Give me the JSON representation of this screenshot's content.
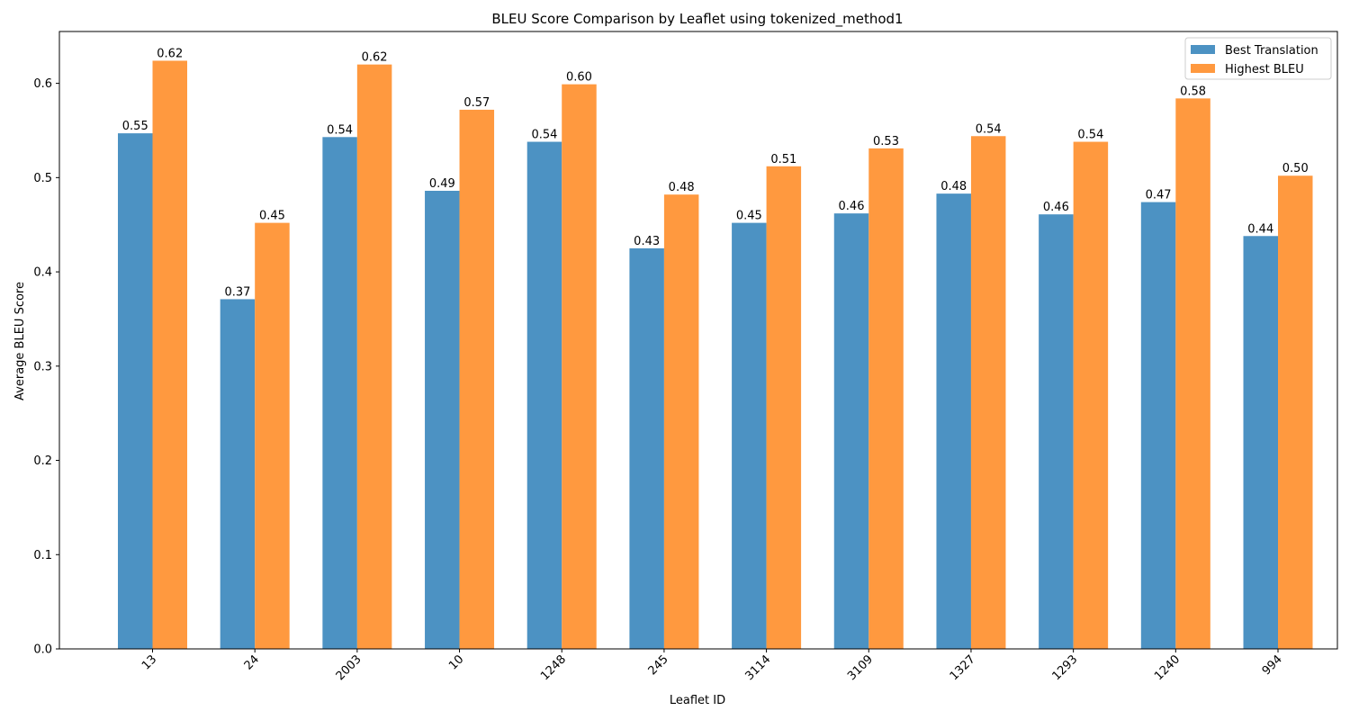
{
  "chart_data": {
    "type": "bar",
    "title": "BLEU Score Comparison by Leaflet using tokenized_method1",
    "xlabel": "Leaflet ID",
    "ylabel": "Average BLEU Score",
    "ylim": [
      0,
      0.655
    ],
    "yticks": [
      0.0,
      0.1,
      0.2,
      0.3,
      0.4,
      0.5,
      0.6
    ],
    "ytick_labels": [
      "0.0",
      "0.1",
      "0.2",
      "0.3",
      "0.4",
      "0.5",
      "0.6"
    ],
    "categories": [
      "13",
      "24",
      "2003",
      "10",
      "1248",
      "245",
      "3114",
      "3109",
      "1327",
      "1293",
      "1240",
      "994"
    ],
    "series": [
      {
        "name": "Best Translation",
        "color": "#4c92c3",
        "values": [
          0.547,
          0.371,
          0.543,
          0.486,
          0.538,
          0.425,
          0.452,
          0.462,
          0.483,
          0.461,
          0.474,
          0.438
        ],
        "labels": [
          "0.55",
          "0.37",
          "0.54",
          "0.49",
          "0.54",
          "0.43",
          "0.45",
          "0.46",
          "0.48",
          "0.46",
          "0.47",
          "0.44"
        ]
      },
      {
        "name": "Highest BLEU",
        "color": "#ff993f",
        "values": [
          0.624,
          0.452,
          0.62,
          0.572,
          0.599,
          0.482,
          0.512,
          0.531,
          0.544,
          0.538,
          0.584,
          0.502
        ],
        "labels": [
          "0.62",
          "0.45",
          "0.62",
          "0.57",
          "0.60",
          "0.48",
          "0.51",
          "0.53",
          "0.54",
          "0.54",
          "0.58",
          "0.50"
        ]
      }
    ],
    "legend": "top-right",
    "grid": false
  }
}
